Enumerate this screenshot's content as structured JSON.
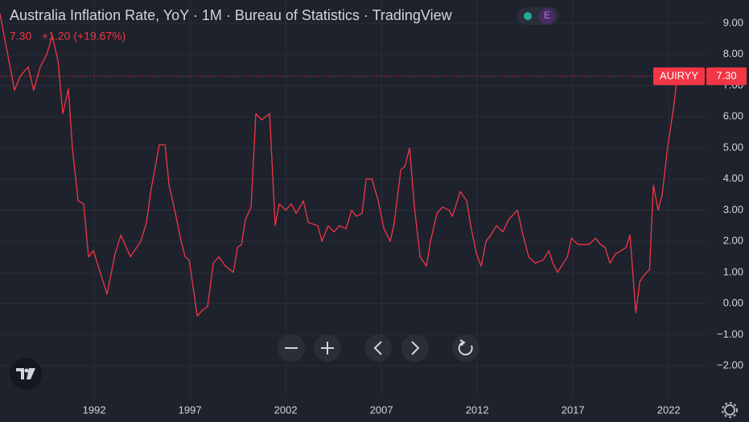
{
  "chart_data": {
    "type": "line",
    "title": "Australia Inflation Rate, YoY · 1M · Bureau of Statistics · TradingView",
    "badge": "E",
    "last": 7.3,
    "last_label": "7.30",
    "change_label": "+1.20 (+19.67%)",
    "symbol": "AUIRYY",
    "color": "#f23645",
    "grid": true,
    "x": [
      1987.08,
      1987.84,
      1988.13,
      1988.55,
      1988.84,
      1989.18,
      1989.52,
      1989.81,
      1990.11,
      1990.36,
      1990.65,
      1990.86,
      1991.16,
      1991.45,
      1991.7,
      1991.96,
      1992.21,
      1992.67,
      1993.09,
      1993.39,
      1993.89,
      1994.43,
      1994.73,
      1994.98,
      1995.4,
      1995.7,
      1995.91,
      1996.24,
      1996.54,
      1996.75,
      1996.96,
      1997.38,
      1997.67,
      1997.92,
      1998.22,
      1998.51,
      1998.85,
      1999.27,
      1999.48,
      1999.69,
      1999.9,
      2000.19,
      2000.44,
      2000.74,
      2001.16,
      2001.45,
      2001.66,
      2002.0,
      2002.29,
      2002.55,
      2002.92,
      2003.18,
      2003.68,
      2003.89,
      2004.22,
      2004.52,
      2004.81,
      2005.15,
      2005.44,
      2005.69,
      2005.99,
      2006.2,
      2006.5,
      2006.83,
      2007.13,
      2007.46,
      2007.67,
      2008.01,
      2008.22,
      2008.47,
      2008.72,
      2009.02,
      2009.35,
      2009.56,
      2009.9,
      2010.19,
      2010.53,
      2010.7,
      2011.12,
      2011.45,
      2011.66,
      2011.96,
      2012.21,
      2012.46,
      2012.71,
      2013.01,
      2013.34,
      2013.64,
      2014.1,
      2014.39,
      2014.69,
      2015.03,
      2015.45,
      2015.74,
      2015.95,
      2016.2,
      2016.5,
      2016.71,
      2016.92,
      2017.25,
      2017.55,
      2017.84,
      2018.18,
      2018.43,
      2018.68,
      2018.93,
      2019.23,
      2019.52,
      2019.77,
      2019.98,
      2020.28,
      2020.49,
      2020.7,
      2021.0,
      2021.2,
      2021.45,
      2021.66,
      2021.96,
      2022.21,
      2022.46
    ],
    "values": [
      9.3,
      6.85,
      7.3,
      7.6,
      6.85,
      7.6,
      8.0,
      8.6,
      7.8,
      6.1,
      6.9,
      5.0,
      3.3,
      3.2,
      1.5,
      1.7,
      1.2,
      0.3,
      1.6,
      2.2,
      1.5,
      2.0,
      2.6,
      3.7,
      5.1,
      5.1,
      3.8,
      2.9,
      2.0,
      1.5,
      1.4,
      -0.4,
      -0.2,
      -0.1,
      1.3,
      1.5,
      1.2,
      1.0,
      1.8,
      1.9,
      2.7,
      3.1,
      6.1,
      5.9,
      6.1,
      2.5,
      3.2,
      3.0,
      3.2,
      2.9,
      3.3,
      2.6,
      2.5,
      2.0,
      2.5,
      2.3,
      2.5,
      2.4,
      3.0,
      2.8,
      2.9,
      4.0,
      4.0,
      3.3,
      2.4,
      2.0,
      2.6,
      4.3,
      4.4,
      5.0,
      3.1,
      1.5,
      1.2,
      2.0,
      2.9,
      3.1,
      3.0,
      2.8,
      3.6,
      3.3,
      2.5,
      1.6,
      1.2,
      2.0,
      2.2,
      2.5,
      2.3,
      2.7,
      3.0,
      2.2,
      1.5,
      1.3,
      1.4,
      1.7,
      1.3,
      1.0,
      1.3,
      1.5,
      2.1,
      1.9,
      1.9,
      1.9,
      2.1,
      1.9,
      1.8,
      1.3,
      1.6,
      1.7,
      1.8,
      2.2,
      -0.3,
      0.7,
      0.9,
      1.1,
      3.8,
      3.0,
      3.5,
      5.1,
      6.1,
      7.3
    ],
    "xlim": [
      1987.08,
      2024.05
    ],
    "xticks": [
      1992,
      1997,
      2002,
      2007,
      2012,
      2017,
      2022
    ],
    "ylim": [
      -3.03,
      9.75
    ],
    "yticks": [
      {
        "value": 9,
        "label": "9.00"
      },
      {
        "value": 8,
        "label": "8.00"
      },
      {
        "value": 7,
        "label": "7.00"
      },
      {
        "value": 6,
        "label": "6.00"
      },
      {
        "value": 5,
        "label": "5.00"
      },
      {
        "value": 4,
        "label": "4.00"
      },
      {
        "value": 3,
        "label": "3.00"
      },
      {
        "value": 2,
        "label": "2.00"
      },
      {
        "value": 1,
        "label": "1.00"
      },
      {
        "value": 0,
        "label": "0.00"
      },
      {
        "value": -1,
        "label": "−1.00"
      },
      {
        "value": -2,
        "label": "−2.00"
      }
    ]
  }
}
